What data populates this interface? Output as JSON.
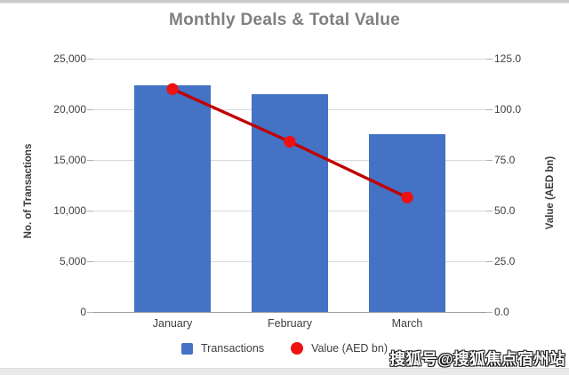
{
  "window": {
    "watermark_text": "搜狐号@搜狐焦点宿州站"
  },
  "chart_data": {
    "type": "bar",
    "subtype": "bar-line-combo",
    "title": "Monthly Deals & Total Value",
    "categories": [
      "January",
      "February",
      "March"
    ],
    "series": [
      {
        "name": "Transactions",
        "type": "bar",
        "axis": "left",
        "values": [
          22400,
          21500,
          17500
        ]
      },
      {
        "name": "Value (AED bn)",
        "type": "line",
        "axis": "right",
        "values": [
          110,
          84,
          56.5
        ]
      }
    ],
    "left_axis": {
      "label": "No. of Transactions",
      "min": 0,
      "max": 25000,
      "ticks": [
        "25,000",
        "20,000",
        "15,000",
        "10,000",
        "5,000",
        "0"
      ]
    },
    "right_axis": {
      "label": "Value (AED bn)",
      "min": 0,
      "max": 125,
      "ticks": [
        "125.0",
        "100.0",
        "75.0",
        "50.0",
        "25.0",
        "0.0"
      ]
    },
    "grid": true,
    "legend_position": "bottom",
    "legend": [
      {
        "label": "Transactions",
        "swatch": "square",
        "color": "#4472C4"
      },
      {
        "label": "Value (AED bn)",
        "swatch": "circle",
        "color": "#EE1111"
      }
    ],
    "colors": {
      "bar": "#4472C4",
      "line": "#C00000",
      "marker": "#EE1111",
      "grid": "#D9D9D9",
      "axis_line": "#999999",
      "title": "#7F7F7F",
      "tick_text": "#3F3F3F"
    }
  }
}
